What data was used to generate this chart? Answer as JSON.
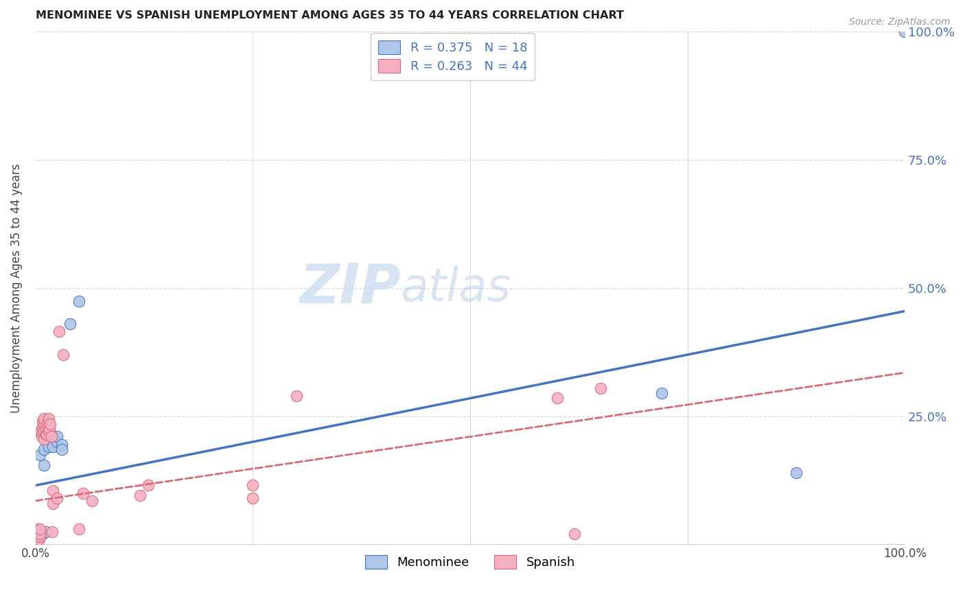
{
  "title": "MENOMINEE VS SPANISH UNEMPLOYMENT AMONG AGES 35 TO 44 YEARS CORRELATION CHART",
  "source": "Source: ZipAtlas.com",
  "ylabel": "Unemployment Among Ages 35 to 44 years",
  "xlim": [
    0,
    1.0
  ],
  "ylim": [
    0,
    1.0
  ],
  "menominee_color": "#aec6e8",
  "spanish_color": "#f4afc0",
  "menominee_line_color": "#4472c4",
  "spanish_line_color": "#d9697a",
  "menominee_R": 0.375,
  "menominee_N": 18,
  "spanish_R": 0.263,
  "spanish_N": 44,
  "background_color": "#ffffff",
  "grid_color": "#d8d8d8",
  "menominee_line_start_y": 0.115,
  "menominee_line_end_y": 0.455,
  "spanish_line_start_y": 0.085,
  "spanish_line_end_y": 0.335,
  "menominee_x": [
    0.005,
    0.01,
    0.01,
    0.015,
    0.02,
    0.02,
    0.025,
    0.025,
    0.03,
    0.03,
    0.04,
    0.05,
    0.005,
    0.008,
    0.012,
    0.72,
    0.875,
    1.0
  ],
  "menominee_y": [
    0.175,
    0.155,
    0.185,
    0.19,
    0.19,
    0.21,
    0.2,
    0.21,
    0.195,
    0.185,
    0.43,
    0.475,
    0.02,
    0.02,
    0.025,
    0.295,
    0.14,
    1.0
  ],
  "spanish_x": [
    0.003,
    0.003,
    0.003,
    0.004,
    0.004,
    0.005,
    0.005,
    0.005,
    0.005,
    0.007,
    0.007,
    0.008,
    0.008,
    0.01,
    0.01,
    0.01,
    0.01,
    0.012,
    0.012,
    0.013,
    0.013,
    0.015,
    0.015,
    0.015,
    0.016,
    0.017,
    0.018,
    0.019,
    0.02,
    0.02,
    0.025,
    0.027,
    0.032,
    0.05,
    0.055,
    0.065,
    0.12,
    0.13,
    0.25,
    0.25,
    0.3,
    0.6,
    0.62,
    0.65
  ],
  "spanish_y": [
    0.01,
    0.02,
    0.03,
    0.01,
    0.02,
    0.015,
    0.02,
    0.03,
    0.22,
    0.21,
    0.22,
    0.23,
    0.24,
    0.205,
    0.22,
    0.235,
    0.245,
    0.215,
    0.225,
    0.215,
    0.235,
    0.22,
    0.235,
    0.245,
    0.225,
    0.235,
    0.21,
    0.025,
    0.105,
    0.08,
    0.09,
    0.415,
    0.37,
    0.03,
    0.1,
    0.085,
    0.095,
    0.115,
    0.09,
    0.115,
    0.29,
    0.285,
    0.02,
    0.305
  ]
}
